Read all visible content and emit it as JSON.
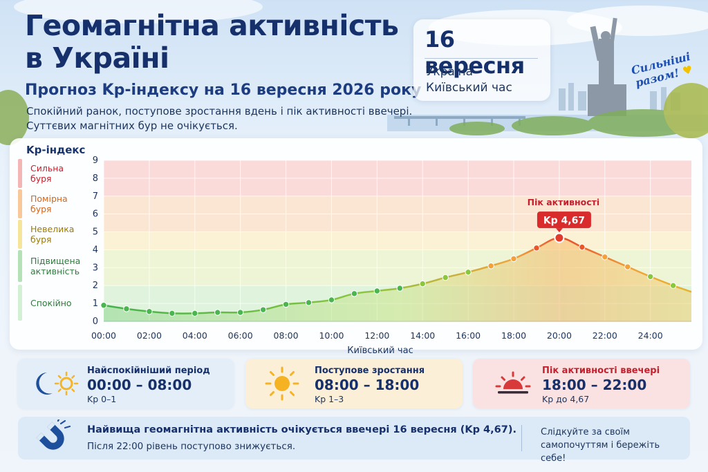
{
  "header": {
    "title_line1": "Геомагнітна активність",
    "title_line2": "в Україні",
    "subtitle": "Прогноз Kp-індексу на 16 вересня 2026 року",
    "description_line1": "Спокійний ранок, поступове зростання вдень і пік активності ввечері.",
    "description_line2": "Суттєвих магнітних бур не очікується."
  },
  "date_card": {
    "date": "16 вересня",
    "region": "Україна",
    "timezone": "Київський час"
  },
  "slogan": {
    "line1": "Сильніші",
    "line2": "разом!"
  },
  "legend": {
    "title": "Kp-індекс",
    "items": [
      {
        "label": "Сильна буря",
        "color": "#e8434b"
      },
      {
        "label": "Помірна буря",
        "color": "#f39a3c"
      },
      {
        "label": "Невелика буря",
        "color": "#f3cf3a"
      },
      {
        "label": "Підвищена активність",
        "color": "#6cc77a"
      },
      {
        "label": "Спокійно",
        "color": "#a4dfaa"
      }
    ]
  },
  "chart_data": {
    "type": "line",
    "xlabel": "Київський час",
    "ylabel": "",
    "ylim": [
      0,
      9
    ],
    "yticks": [
      "0",
      "1",
      "2",
      "3",
      "4",
      "5",
      "6",
      "7",
      "8",
      "9"
    ],
    "xlim": [
      0,
      25.8
    ],
    "xticks": [
      "00:00",
      "02:00",
      "04:00",
      "06:00",
      "08:00",
      "10:00",
      "12:00",
      "14:00",
      "16:00",
      "18:00",
      "20:00",
      "22:00",
      "24:00"
    ],
    "grid": true,
    "x": [
      0,
      1,
      2,
      3,
      4,
      5,
      6,
      7,
      8,
      9,
      10,
      11,
      12,
      13,
      14,
      15,
      16,
      17,
      18,
      19,
      20,
      21,
      22,
      23,
      24,
      25,
      25.8
    ],
    "y": [
      0.9,
      0.7,
      0.55,
      0.45,
      0.45,
      0.5,
      0.5,
      0.65,
      0.95,
      1.05,
      1.2,
      1.55,
      1.7,
      1.85,
      2.1,
      2.45,
      2.75,
      3.1,
      3.5,
      4.1,
      4.67,
      4.15,
      3.6,
      3.05,
      2.5,
      2.0,
      1.65
    ],
    "peak": {
      "x": 20,
      "y": 4.67,
      "label": "Пік активності",
      "value_label": "Kp 4,67"
    },
    "bands": [
      {
        "from": 0,
        "to": 2,
        "color": "#dff3dd"
      },
      {
        "from": 2,
        "to": 4,
        "color": "#eef4d6"
      },
      {
        "from": 4,
        "to": 5,
        "color": "#fbf1d4"
      },
      {
        "from": 5,
        "to": 7,
        "color": "#fbe6d4"
      },
      {
        "from": 7,
        "to": 9,
        "color": "#fbdada"
      }
    ]
  },
  "cards": [
    {
      "title": "Найспокійніший період",
      "range": "00:00 – 08:00",
      "note": "Kp 0–1",
      "title_color": "#16306b",
      "bg": "#e3eef9",
      "icon": "moon-sun-icon"
    },
    {
      "title": "Поступове зростання",
      "range": "08:00 – 18:00",
      "note": "Kp 1–3",
      "title_color": "#16306b",
      "bg": "#fcefd8",
      "icon": "sun-icon"
    },
    {
      "title": "Пік активності ввечері",
      "range": "18:00 – 22:00",
      "note": "Kp до 4,67",
      "title_color": "#c4202e",
      "bg": "#fbe2e2",
      "icon": "sunset-icon"
    }
  ],
  "bottom": {
    "main": "Найвища геомагнітна активність очікується ввечері 16 вересня (Kp 4,67).",
    "sub": "Після 22:00 рівень поступово знижується.",
    "note": "Слідкуйте за своїм самопочуттям і бережіть себе!",
    "icon": "magnet-icon"
  }
}
